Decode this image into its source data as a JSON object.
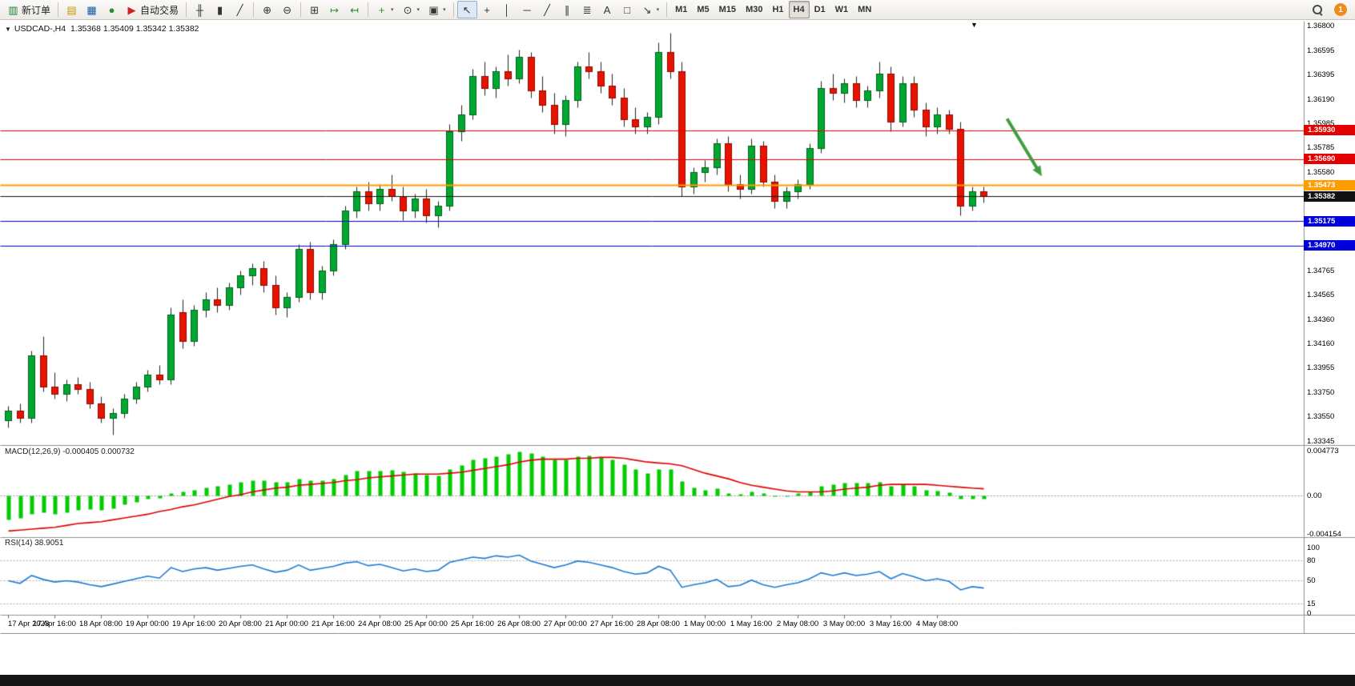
{
  "toolbar": {
    "groups": [
      {
        "name": "trade",
        "items": [
          {
            "name": "new-order",
            "glyph": "▥",
            "color": "#1a7f37",
            "label": "新订单"
          }
        ]
      },
      {
        "name": "panels",
        "items": [
          {
            "name": "market-watch",
            "glyph": "▤",
            "color": "#c99700"
          },
          {
            "name": "data-window",
            "glyph": "▦",
            "color": "#1258a8"
          },
          {
            "name": "navigator",
            "glyph": "●",
            "color": "#2e8b2e"
          },
          {
            "name": "autotrading",
            "glyph": "▶",
            "color": "#cc2222",
            "label": "自动交易"
          }
        ]
      },
      {
        "name": "chart-types",
        "items": [
          {
            "name": "bar-chart",
            "glyph": "╫",
            "color": "#333"
          },
          {
            "name": "candlestick-chart",
            "glyph": "▮",
            "color": "#333"
          },
          {
            "name": "line-chart",
            "glyph": "╱",
            "color": "#333"
          }
        ]
      },
      {
        "name": "zoom",
        "items": [
          {
            "name": "zoom-in",
            "glyph": "⊕",
            "color": "#333"
          },
          {
            "name": "zoom-out",
            "glyph": "⊖",
            "color": "#333"
          }
        ]
      },
      {
        "name": "arrange",
        "items": [
          {
            "name": "tile-windows",
            "glyph": "⊞",
            "color": "#333"
          },
          {
            "name": "auto-scroll",
            "glyph": "↦",
            "color": "#2e8b2e"
          },
          {
            "name": "chart-shift",
            "glyph": "↤",
            "color": "#2e8b2e"
          }
        ]
      },
      {
        "name": "insert",
        "items": [
          {
            "name": "indicators",
            "glyph": "+",
            "color": "#2e8b2e",
            "caret": true
          },
          {
            "name": "periods",
            "glyph": "⊙",
            "color": "#333",
            "caret": true
          },
          {
            "name": "templates",
            "glyph": "▣",
            "color": "#333",
            "caret": true
          }
        ]
      },
      {
        "name": "draw",
        "items": [
          {
            "name": "cursor",
            "glyph": "↖",
            "color": "#333",
            "active": true
          },
          {
            "name": "crosshair",
            "glyph": "+",
            "color": "#333"
          },
          {
            "name": "vertical-line",
            "glyph": "│",
            "color": "#333"
          },
          {
            "name": "horizontal-line",
            "glyph": "─",
            "color": "#333"
          },
          {
            "name": "trendline",
            "glyph": "╱",
            "color": "#333"
          },
          {
            "name": "equidistant-channel",
            "glyph": "∥",
            "color": "#333"
          },
          {
            "name": "fibonacci",
            "glyph": "≣",
            "color": "#333"
          },
          {
            "name": "text",
            "glyph": "A",
            "color": "#333"
          },
          {
            "name": "text-label",
            "glyph": "□",
            "color": "#333"
          },
          {
            "name": "arrows",
            "glyph": "↘",
            "color": "#333",
            "caret": true
          }
        ]
      }
    ],
    "timeframes": [
      "M1",
      "M5",
      "M15",
      "M30",
      "H1",
      "H4",
      "D1",
      "W1",
      "MN"
    ],
    "active_timeframe": "H4",
    "notification_count": "1"
  },
  "chart": {
    "title": {
      "symbol_period": "USDCAD-,H4",
      "ohlc": "1.35368 1.35409 1.35342 1.35382",
      "dropdown_glyph": "▼"
    },
    "shift_marker_glyph": "▼",
    "price_axis": {
      "ticks": [
        "1.36800",
        "1.36595",
        "1.36395",
        "1.36190",
        "1.35985",
        "1.35785",
        "1.35580",
        "1.35380",
        "1.35175",
        "1.34970",
        "1.34765",
        "1.34565",
        "1.34360",
        "1.34160",
        "1.33955",
        "1.33750",
        "1.33550",
        "1.33345"
      ]
    },
    "time_axis": {
      "labels": [
        "17 Apr 2023",
        "17 Apr 16:00",
        "18 Apr 08:00",
        "19 Apr 00:00",
        "19 Apr 16:00",
        "20 Apr 08:00",
        "21 Apr 00:00",
        "21 Apr 16:00",
        "24 Apr 08:00",
        "25 Apr 00:00",
        "25 Apr 16:00",
        "26 Apr 08:00",
        "27 Apr 00:00",
        "27 Apr 16:00",
        "28 Apr 08:00",
        "1 May 00:00",
        "1 May 16:00",
        "2 May 08:00",
        "3 May 00:00",
        "3 May 16:00",
        "4 May 08:00"
      ],
      "bars_per_label": 4
    },
    "levels": [
      {
        "price": 1.3593,
        "label": "1.35930",
        "color": "#e40000",
        "width": 1,
        "kind": "resistance"
      },
      {
        "price": 1.3569,
        "label": "1.35690",
        "color": "#e40000",
        "width": 1,
        "kind": "resistance"
      },
      {
        "price": 1.35473,
        "label": "1.35473",
        "color": "#ff9c00",
        "width": 2,
        "kind": "pivot"
      },
      {
        "price": 1.35382,
        "label": "1.35382",
        "color": "#111111",
        "width": 1,
        "kind": "current-price"
      },
      {
        "price": 1.35175,
        "label": "1.35175",
        "color": "#0000dd",
        "width": 1,
        "kind": "support"
      },
      {
        "price": 1.3497,
        "label": "1.34970",
        "color": "#0000dd",
        "width": 1,
        "kind": "support"
      }
    ],
    "annotations": [
      {
        "type": "arrow",
        "from": {
          "bar": 86,
          "price": 1.3603
        },
        "to": {
          "bar": 89,
          "price": 1.3555
        },
        "color": "#3f9e3f"
      }
    ]
  },
  "chart_data": {
    "type": "candlestick",
    "symbol": "USDCAD",
    "period": "H4",
    "ylim": [
      1.33345,
      1.368
    ],
    "colors": {
      "bull": "#00a832",
      "bull_edge": "#006018",
      "bear": "#e81200",
      "bear_edge": "#8a0c00",
      "wick": "#222222"
    },
    "candles": [
      [
        1.3352,
        1.3364,
        1.3346,
        1.336
      ],
      [
        1.336,
        1.3366,
        1.335,
        1.3354
      ],
      [
        1.3354,
        1.341,
        1.335,
        1.3406
      ],
      [
        1.3406,
        1.3422,
        1.3376,
        1.338
      ],
      [
        1.338,
        1.3392,
        1.337,
        1.3374
      ],
      [
        1.3374,
        1.3386,
        1.3368,
        1.3382
      ],
      [
        1.3382,
        1.3388,
        1.3374,
        1.3378
      ],
      [
        1.3378,
        1.3384,
        1.3362,
        1.3366
      ],
      [
        1.3366,
        1.3372,
        1.335,
        1.3354
      ],
      [
        1.3354,
        1.3362,
        1.334,
        1.3358
      ],
      [
        1.3358,
        1.3374,
        1.3354,
        1.337
      ],
      [
        1.337,
        1.3384,
        1.3366,
        1.338
      ],
      [
        1.338,
        1.3394,
        1.3376,
        1.339
      ],
      [
        1.339,
        1.3398,
        1.3382,
        1.3386
      ],
      [
        1.3386,
        1.3446,
        1.3382,
        1.344
      ],
      [
        1.3442,
        1.3452,
        1.3412,
        1.3418
      ],
      [
        1.3418,
        1.3448,
        1.3414,
        1.3444
      ],
      [
        1.3444,
        1.3458,
        1.3438,
        1.3452
      ],
      [
        1.3452,
        1.3462,
        1.3442,
        1.3448
      ],
      [
        1.3448,
        1.3466,
        1.3444,
        1.3462
      ],
      [
        1.3462,
        1.3476,
        1.3456,
        1.3472
      ],
      [
        1.3472,
        1.3482,
        1.3464,
        1.3478
      ],
      [
        1.3478,
        1.3484,
        1.3458,
        1.3464
      ],
      [
        1.3464,
        1.3472,
        1.344,
        1.3446
      ],
      [
        1.3446,
        1.3458,
        1.3438,
        1.3454
      ],
      [
        1.3454,
        1.3498,
        1.345,
        1.3494
      ],
      [
        1.3494,
        1.35,
        1.3452,
        1.3458
      ],
      [
        1.3458,
        1.348,
        1.3452,
        1.3476
      ],
      [
        1.3476,
        1.3502,
        1.3472,
        1.3498
      ],
      [
        1.3498,
        1.353,
        1.3494,
        1.3526
      ],
      [
        1.3526,
        1.3546,
        1.352,
        1.3542
      ],
      [
        1.3542,
        1.355,
        1.3526,
        1.3532
      ],
      [
        1.3532,
        1.3548,
        1.3526,
        1.3544
      ],
      [
        1.3544,
        1.3556,
        1.3534,
        1.3538
      ],
      [
        1.3538,
        1.3546,
        1.3518,
        1.3526
      ],
      [
        1.3526,
        1.354,
        1.352,
        1.3536
      ],
      [
        1.3536,
        1.3544,
        1.3516,
        1.3522
      ],
      [
        1.3522,
        1.3534,
        1.3512,
        1.353
      ],
      [
        1.353,
        1.3598,
        1.3526,
        1.3592
      ],
      [
        1.3592,
        1.3614,
        1.3584,
        1.3606
      ],
      [
        1.3606,
        1.3644,
        1.3602,
        1.3638
      ],
      [
        1.3638,
        1.365,
        1.3622,
        1.3628
      ],
      [
        1.3628,
        1.3646,
        1.362,
        1.3642
      ],
      [
        1.3642,
        1.3656,
        1.363,
        1.3636
      ],
      [
        1.3636,
        1.366,
        1.3632,
        1.3654
      ],
      [
        1.3654,
        1.3658,
        1.362,
        1.3626
      ],
      [
        1.3626,
        1.3638,
        1.3608,
        1.3614
      ],
      [
        1.3614,
        1.3624,
        1.359,
        1.3598
      ],
      [
        1.3598,
        1.3622,
        1.3588,
        1.3618
      ],
      [
        1.3618,
        1.365,
        1.3612,
        1.3646
      ],
      [
        1.3646,
        1.3658,
        1.3636,
        1.3642
      ],
      [
        1.3642,
        1.365,
        1.3624,
        1.363
      ],
      [
        1.363,
        1.364,
        1.3614,
        1.362
      ],
      [
        1.362,
        1.3628,
        1.3596,
        1.3602
      ],
      [
        1.3602,
        1.3612,
        1.359,
        1.3596
      ],
      [
        1.3596,
        1.3608,
        1.359,
        1.3604
      ],
      [
        1.3604,
        1.3666,
        1.3598,
        1.3658
      ],
      [
        1.3658,
        1.3674,
        1.3636,
        1.3642
      ],
      [
        1.3642,
        1.365,
        1.3538,
        1.3546
      ],
      [
        1.3546,
        1.3562,
        1.354,
        1.3558
      ],
      [
        1.3558,
        1.3568,
        1.355,
        1.3562
      ],
      [
        1.3562,
        1.3586,
        1.3556,
        1.3582
      ],
      [
        1.3582,
        1.3588,
        1.3542,
        1.3548
      ],
      [
        1.3548,
        1.3556,
        1.3536,
        1.3544
      ],
      [
        1.3544,
        1.3586,
        1.354,
        1.358
      ],
      [
        1.358,
        1.3584,
        1.3546,
        1.355
      ],
      [
        1.355,
        1.3556,
        1.3528,
        1.3534
      ],
      [
        1.3534,
        1.3546,
        1.3528,
        1.3542
      ],
      [
        1.3542,
        1.3552,
        1.3536,
        1.3548
      ],
      [
        1.3548,
        1.3582,
        1.3544,
        1.3578
      ],
      [
        1.3578,
        1.3634,
        1.3574,
        1.3628
      ],
      [
        1.3628,
        1.364,
        1.3618,
        1.3624
      ],
      [
        1.3624,
        1.3636,
        1.3616,
        1.3632
      ],
      [
        1.3632,
        1.3638,
        1.3612,
        1.3618
      ],
      [
        1.3618,
        1.363,
        1.3612,
        1.3626
      ],
      [
        1.3626,
        1.365,
        1.362,
        1.364
      ],
      [
        1.364,
        1.3646,
        1.3592,
        1.36
      ],
      [
        1.36,
        1.3638,
        1.3596,
        1.3632
      ],
      [
        1.3632,
        1.3638,
        1.3604,
        1.361
      ],
      [
        1.361,
        1.3616,
        1.3588,
        1.3596
      ],
      [
        1.3596,
        1.3612,
        1.359,
        1.3606
      ],
      [
        1.3606,
        1.361,
        1.359,
        1.3594
      ],
      [
        1.3594,
        1.36,
        1.3522,
        1.353
      ],
      [
        1.353,
        1.3546,
        1.3526,
        1.3542
      ],
      [
        1.3542,
        1.3546,
        1.3533,
        1.35382
      ]
    ],
    "macd": {
      "label": "MACD(12,26,9)",
      "values_text": "-0.000405 0.000732",
      "scale_labels": [
        "0.004773",
        "0.00",
        "-0.004154"
      ],
      "vmax": 0.004773,
      "vmin": -0.004154,
      "histogram_color": "#00cc00",
      "signal_color": "#e00000",
      "histogram": [
        -0.0026,
        -0.0024,
        -0.002,
        -0.0018,
        -0.002,
        -0.0018,
        -0.0016,
        -0.0015,
        -0.0016,
        -0.0014,
        -0.001,
        -0.0007,
        -0.0004,
        -0.0003,
        0.0002,
        0.0004,
        0.0006,
        0.0008,
        0.001,
        0.0012,
        0.0014,
        0.0016,
        0.0016,
        0.0014,
        0.0014,
        0.0018,
        0.0016,
        0.0016,
        0.0018,
        0.0022,
        0.0026,
        0.0026,
        0.0026,
        0.0027,
        0.0025,
        0.0024,
        0.0022,
        0.0021,
        0.0028,
        0.0032,
        0.0038,
        0.004,
        0.0042,
        0.0044,
        0.0047,
        0.0045,
        0.0042,
        0.0038,
        0.0038,
        0.0042,
        0.0043,
        0.0041,
        0.0038,
        0.0033,
        0.0028,
        0.0024,
        0.0028,
        0.0028,
        0.0015,
        0.0008,
        0.0006,
        0.0007,
        0.0002,
        0.0001,
        0.0004,
        0.0002,
        -0.0001,
        0.0,
        0.0002,
        0.0004,
        0.001,
        0.0012,
        0.0013,
        0.0013,
        0.0013,
        0.0014,
        0.001,
        0.0012,
        0.001,
        0.0006,
        0.0005,
        0.0003,
        -0.0004,
        -0.0004,
        -0.000405
      ],
      "signal": [
        -0.0038,
        -0.0037,
        -0.0036,
        -0.0035,
        -0.0034,
        -0.0032,
        -0.003,
        -0.0029,
        -0.0028,
        -0.0026,
        -0.0024,
        -0.0022,
        -0.002,
        -0.0017,
        -0.0015,
        -0.0012,
        -0.001,
        -0.0007,
        -0.0004,
        -0.0001,
        0.0001,
        0.0004,
        0.0006,
        0.0008,
        0.0009,
        0.0011,
        0.0012,
        0.0013,
        0.0014,
        0.0016,
        0.0017,
        0.0019,
        0.002,
        0.0021,
        0.0022,
        0.0023,
        0.0023,
        0.0023,
        0.0024,
        0.0025,
        0.0027,
        0.0029,
        0.0031,
        0.0033,
        0.0036,
        0.0038,
        0.0039,
        0.0039,
        0.0039,
        0.004,
        0.004,
        0.0041,
        0.0041,
        0.004,
        0.0038,
        0.0036,
        0.0035,
        0.0034,
        0.0032,
        0.0028,
        0.0024,
        0.0021,
        0.0018,
        0.0014,
        0.0011,
        0.0009,
        0.0007,
        0.0005,
        0.0004,
        0.0004,
        0.0004,
        0.0005,
        0.0007,
        0.0008,
        0.0009,
        0.0011,
        0.0012,
        0.0012,
        0.0012,
        0.0012,
        0.0011,
        0.001,
        0.0009,
        0.0008,
        0.000732
      ]
    },
    "rsi": {
      "label": "RSI(14)",
      "value_text": "38.9051",
      "scale_labels": [
        "100",
        "80",
        "50",
        "15",
        "0"
      ],
      "scale_values": [
        100,
        80,
        50,
        15,
        0
      ],
      "level_lines": [
        80,
        50,
        15
      ],
      "range": [
        0,
        100
      ],
      "line_color": "#1c7bd4",
      "values": [
        50,
        46,
        58,
        52,
        48,
        50,
        48,
        44,
        41,
        45,
        49,
        53,
        57,
        54,
        70,
        64,
        68,
        70,
        66,
        69,
        72,
        74,
        68,
        63,
        66,
        74,
        66,
        69,
        72,
        77,
        79,
        73,
        75,
        70,
        65,
        68,
        64,
        66,
        78,
        82,
        86,
        84,
        88,
        86,
        89,
        80,
        75,
        70,
        74,
        80,
        78,
        74,
        70,
        64,
        60,
        62,
        72,
        66,
        40,
        44,
        47,
        52,
        41,
        43,
        51,
        44,
        40,
        44,
        47,
        53,
        62,
        58,
        62,
        58,
        60,
        64,
        53,
        61,
        56,
        50,
        53,
        49,
        36,
        41,
        38.9
      ]
    }
  }
}
